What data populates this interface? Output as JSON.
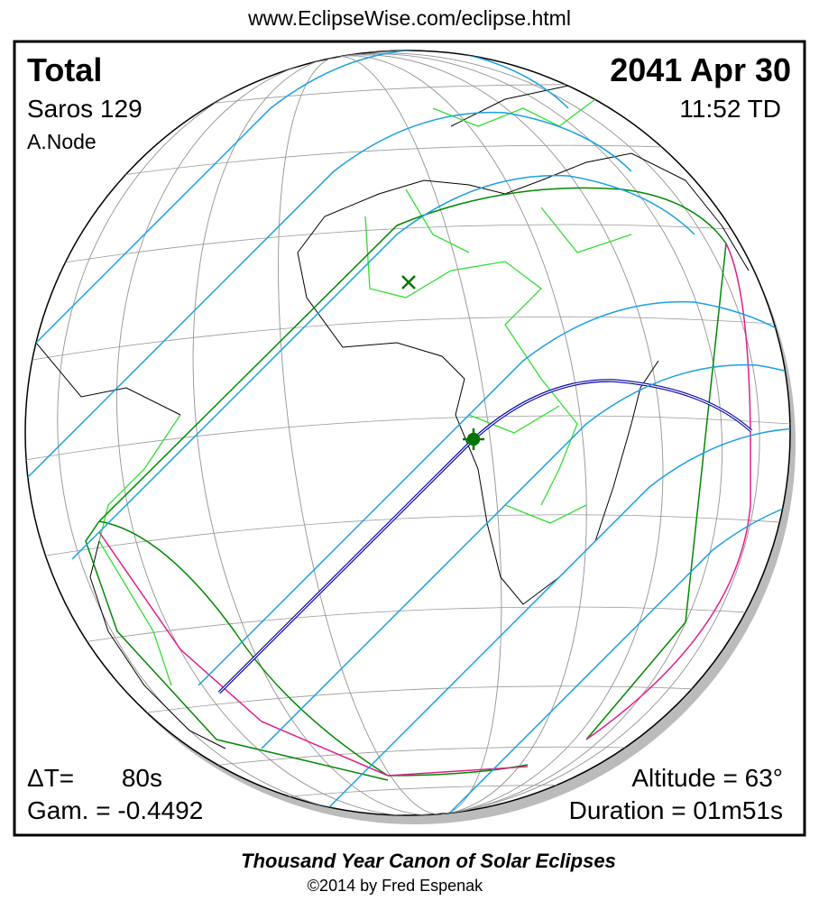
{
  "header": {
    "url": "www.EclipseWise.com/eclipse.html"
  },
  "eclipse": {
    "type": "Total",
    "saros": "Saros 129",
    "node": "A.Node",
    "date": "2041 Apr 30",
    "time": "11:52 TD",
    "delta_t_label": "ΔT=",
    "delta_t": "80s",
    "gamma": "Gam. = -0.4492",
    "altitude": "Altitude = 63°",
    "duration": "Duration = 01m51s"
  },
  "footer": {
    "title": "Thousand Year Canon of Solar Eclipses",
    "copyright": "©2014 by Fred Espenak"
  }
}
